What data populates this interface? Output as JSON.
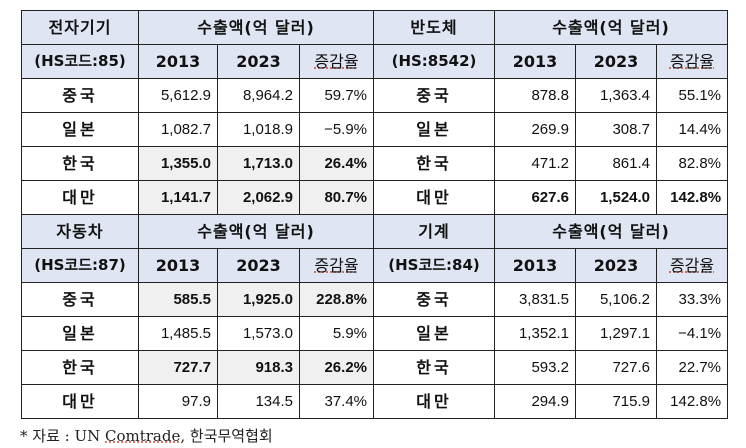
{
  "header_amount_label": "수출액(억 달러)",
  "header_years": [
    "2013",
    "2023"
  ],
  "header_rate_label": "증감율",
  "panels": [
    {
      "name": "전자기기",
      "code": "(HS코드:85)",
      "rows": [
        {
          "country": "중국",
          "y2013": "5,612.9",
          "y2023": "8,964.2",
          "rate": "59.7%",
          "highlight": false
        },
        {
          "country": "일본",
          "y2013": "1,082.7",
          "y2023": "1,018.9",
          "rate": "−5.9%",
          "highlight": false
        },
        {
          "country": "한국",
          "y2013": "1,355.0",
          "y2023": "1,713.0",
          "rate": "26.4%",
          "highlight": true
        },
        {
          "country": "대만",
          "y2013": "1,141.7",
          "y2023": "2,062.9",
          "rate": "80.7%",
          "highlight": true
        }
      ]
    },
    {
      "name": "반도체",
      "code": "(HS:8542)",
      "rows": [
        {
          "country": "중국",
          "y2013": "878.8",
          "y2023": "1,363.4",
          "rate": "55.1%",
          "highlight": false
        },
        {
          "country": "일본",
          "y2013": "269.9",
          "y2023": "308.7",
          "rate": "14.4%",
          "highlight": false
        },
        {
          "country": "한국",
          "y2013": "471.2",
          "y2023": "861.4",
          "rate": "82.8%",
          "highlight": false
        },
        {
          "country": "대만",
          "y2013": "627.6",
          "y2023": "1,524.0",
          "rate": "142.8%",
          "highlight": "bold"
        }
      ]
    },
    {
      "name": "자동차",
      "code": "(HS코드:87)",
      "rows": [
        {
          "country": "중국",
          "y2013": "585.5",
          "y2023": "1,925.0",
          "rate": "228.8%",
          "highlight": true
        },
        {
          "country": "일본",
          "y2013": "1,485.5",
          "y2023": "1,573.0",
          "rate": "5.9%",
          "highlight": false
        },
        {
          "country": "한국",
          "y2013": "727.7",
          "y2023": "918.3",
          "rate": "26.2%",
          "highlight": true
        },
        {
          "country": "대만",
          "y2013": "97.9",
          "y2023": "134.5",
          "rate": "37.4%",
          "highlight": false
        }
      ]
    },
    {
      "name": "기계",
      "code": "(HS코드:84)",
      "rows": [
        {
          "country": "중국",
          "y2013": "3,831.5",
          "y2023": "5,106.2",
          "rate": "33.3%",
          "highlight": false
        },
        {
          "country": "일본",
          "y2013": "1,352.1",
          "y2023": "1,297.1",
          "rate": "−4.1%",
          "highlight": false
        },
        {
          "country": "한국",
          "y2013": "593.2",
          "y2023": "727.6",
          "rate": "22.7%",
          "highlight": false
        },
        {
          "country": "대만",
          "y2013": "294.9",
          "y2023": "715.9",
          "rate": "142.8%",
          "highlight": false
        }
      ]
    }
  ],
  "footer": {
    "prefix": "* 자료 : UN ",
    "source_underlined": "Comtrade",
    "suffix": ", 한국무역협회"
  }
}
